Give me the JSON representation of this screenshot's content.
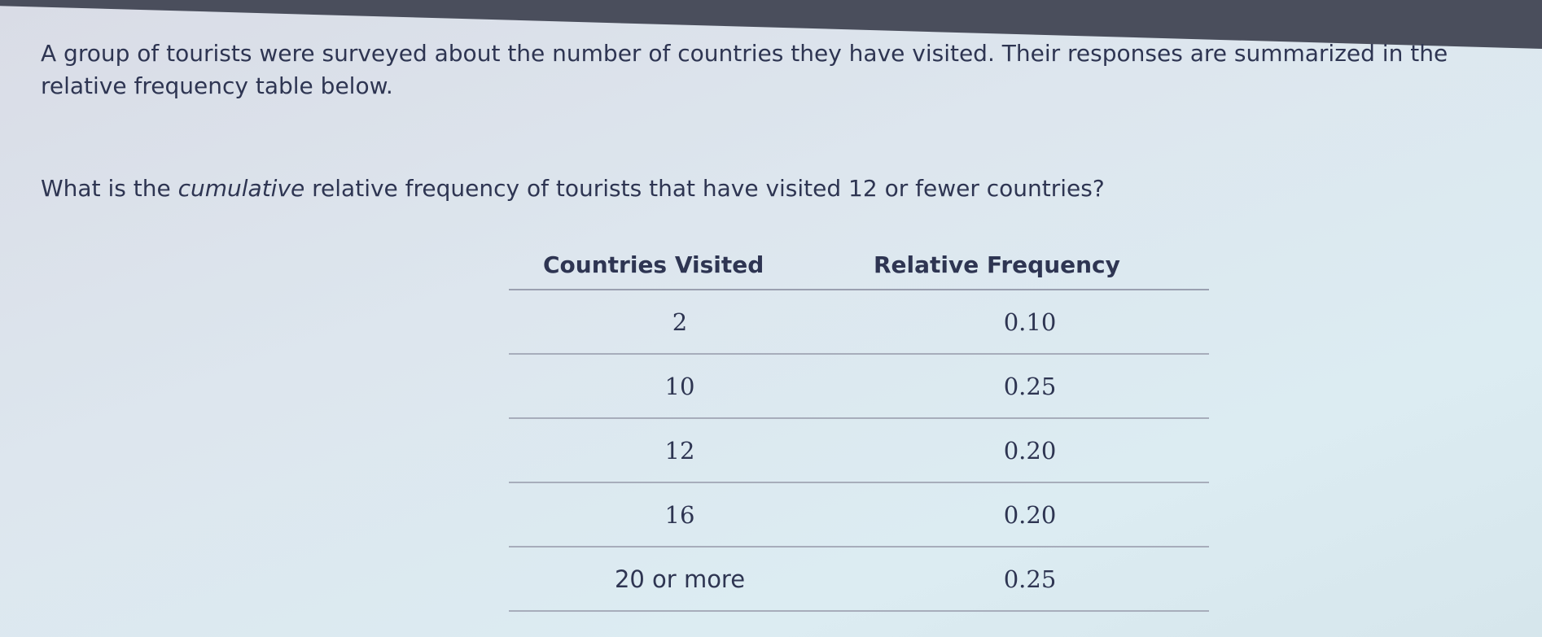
{
  "question": {
    "intro": "A group of tourists were surveyed about the number of countries they have visited. Their responses are summarized in the relative frequency table below.",
    "prompt_before": "What is the ",
    "prompt_emphasis": "cumulative",
    "prompt_after": " relative frequency of tourists that have visited 12 or fewer countries?"
  },
  "table": {
    "headers": [
      "Countries Visited",
      "Relative Frequency"
    ],
    "rows": [
      [
        "2",
        "0.10"
      ],
      [
        "10",
        "0.25"
      ],
      [
        "12",
        "0.20"
      ],
      [
        "16",
        "0.20"
      ],
      [
        "20 or more",
        "0.25"
      ]
    ]
  }
}
